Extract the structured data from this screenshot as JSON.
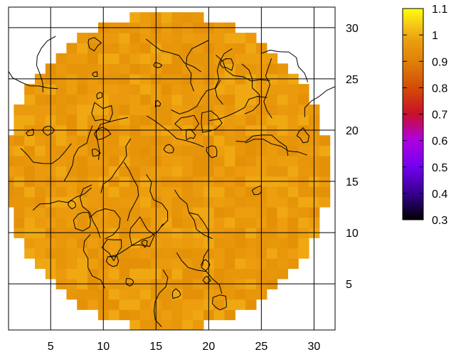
{
  "chart_data": {
    "type": "heatmap",
    "title": "",
    "xlabel": "",
    "ylabel": "",
    "xlim": [
      1,
      32
    ],
    "ylim": [
      0.5,
      32
    ],
    "x_ticks": [
      5,
      10,
      15,
      20,
      25,
      30
    ],
    "y_ticks": [
      5,
      10,
      15,
      20,
      25,
      30
    ],
    "grid": true,
    "x_axis_position": "bottom",
    "y_axis_position": "right",
    "colorbar": {
      "min": 0.3,
      "max": 1.1,
      "ticks": [
        "1.1",
        "1",
        "0.9",
        "0.8",
        "0.7",
        "0.6",
        "0.5",
        "0.4",
        "0.3"
      ],
      "colormap": "gnuplot-rgbformulae-7-5-15",
      "position": "right"
    },
    "map_shape": "circular",
    "map_center": [
      16.5,
      16.5
    ],
    "map_radius_cells": 15.5,
    "value_typical": 0.95,
    "value_range_observed": [
      0.9,
      1.02
    ],
    "contours": "black iso-lines around 0.95 - 1.0",
    "colors": {
      "background": "#ffffff",
      "map_fill": "#E8960A",
      "grid": "#000000",
      "contour": "#000000"
    }
  }
}
